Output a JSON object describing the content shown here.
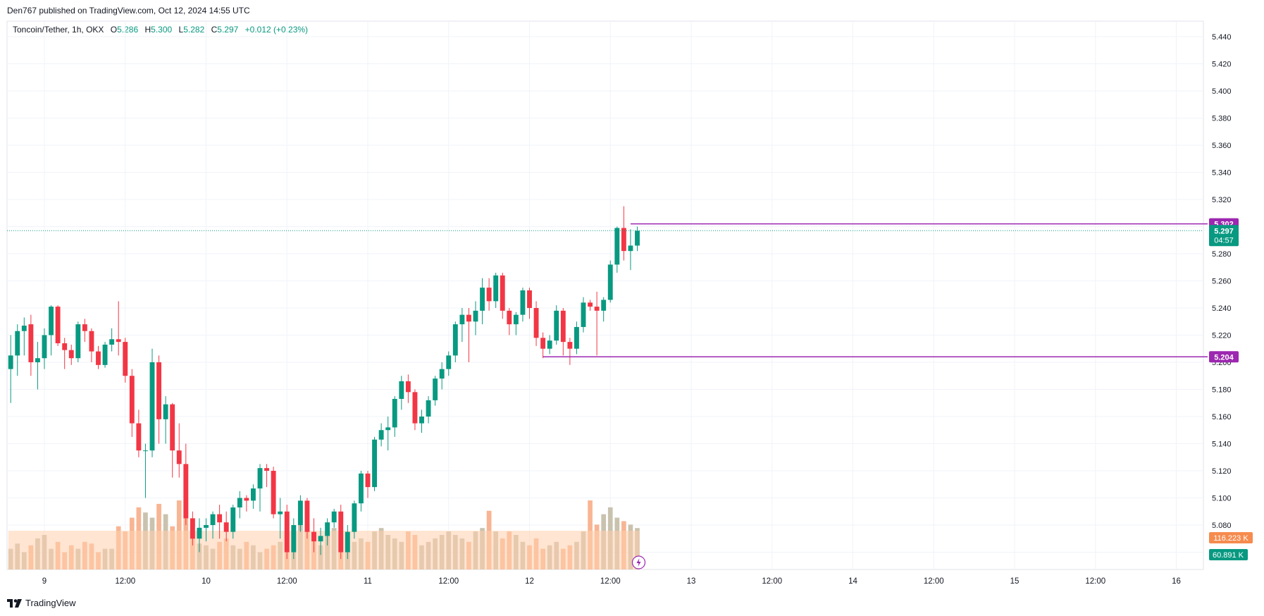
{
  "header": {
    "published": "Den767 published on TradingView.com, Oct 12, 2024 14:55 UTC"
  },
  "legend": {
    "symbol": "Toncoin/Tether, 1h, OKX",
    "open_label": "O",
    "open": "5.286",
    "high_label": "H",
    "high": "5.300",
    "low_label": "L",
    "low": "5.282",
    "close_label": "C",
    "close": "5.297",
    "change": "+0.012 (+0.23%)"
  },
  "footer": {
    "brand": "TradingView",
    "logo_icon": "tradingview-logo-icon"
  },
  "colors": {
    "up": "#089981",
    "down": "#f23645",
    "vol_up": "#bfb7a0",
    "vol_down": "#f7a880",
    "vol_ma": "#ffcfad",
    "level": "#9c27b0",
    "price_label": "#089981",
    "vol_ma_label": "#f68b4e"
  },
  "chart_data": {
    "type": "candlestick",
    "ylim": [
      5.05,
      5.45
    ],
    "y_ticks": [
      "5.440",
      "5.420",
      "5.400",
      "5.380",
      "5.360",
      "5.340",
      "5.320",
      "5.300",
      "5.280",
      "5.260",
      "5.240",
      "5.220",
      "5.200",
      "5.180",
      "5.160",
      "5.140",
      "5.120",
      "5.100",
      "5.080",
      "5.060"
    ],
    "x_ticks": [
      "9",
      "12:00",
      "10",
      "12:00",
      "11",
      "12:00",
      "12",
      "12:00",
      "13",
      "12:00",
      "14",
      "12:00",
      "15",
      "12:00",
      "16"
    ],
    "x_tick_hours": [
      0,
      12,
      24,
      36,
      48,
      60,
      72,
      84,
      96,
      108,
      120,
      132,
      144,
      156,
      168
    ],
    "first_bar_hour": -5,
    "ohlc": [
      [
        5.195,
        5.22,
        5.17,
        5.205
      ],
      [
        5.205,
        5.228,
        5.19,
        5.223
      ],
      [
        5.223,
        5.233,
        5.205,
        5.227
      ],
      [
        5.228,
        5.235,
        5.19,
        5.2
      ],
      [
        5.2,
        5.215,
        5.18,
        5.203
      ],
      [
        5.203,
        5.225,
        5.195,
        5.22
      ],
      [
        5.22,
        5.242,
        5.205,
        5.241
      ],
      [
        5.241,
        5.242,
        5.212,
        5.214
      ],
      [
        5.214,
        5.218,
        5.195,
        5.209
      ],
      [
        5.209,
        5.213,
        5.198,
        5.203
      ],
      [
        5.203,
        5.23,
        5.2,
        5.228
      ],
      [
        5.228,
        5.232,
        5.215,
        5.223
      ],
      [
        5.223,
        5.225,
        5.2,
        5.208
      ],
      [
        5.208,
        5.212,
        5.195,
        5.198
      ],
      [
        5.198,
        5.215,
        5.196,
        5.213
      ],
      [
        5.213,
        5.225,
        5.208,
        5.217
      ],
      [
        5.217,
        5.245,
        5.205,
        5.215
      ],
      [
        5.215,
        5.218,
        5.185,
        5.19
      ],
      [
        5.19,
        5.195,
        5.145,
        5.155
      ],
      [
        5.155,
        5.165,
        5.13,
        5.135
      ],
      [
        5.135,
        5.14,
        5.1,
        5.135
      ],
      [
        5.135,
        5.21,
        5.13,
        5.2
      ],
      [
        5.2,
        5.205,
        5.14,
        5.158
      ],
      [
        5.158,
        5.175,
        5.14,
        5.169
      ],
      [
        5.169,
        5.17,
        5.115,
        5.135
      ],
      [
        5.135,
        5.155,
        5.115,
        5.125
      ],
      [
        5.125,
        5.14,
        5.08,
        5.085
      ],
      [
        5.085,
        5.09,
        5.065,
        5.07
      ],
      [
        5.07,
        5.085,
        5.06,
        5.078
      ],
      [
        5.078,
        5.085,
        5.068,
        5.08
      ],
      [
        5.08,
        5.09,
        5.07,
        5.088
      ],
      [
        5.088,
        5.095,
        5.07,
        5.082
      ],
      [
        5.082,
        5.09,
        5.068,
        5.075
      ],
      [
        5.075,
        5.095,
        5.07,
        5.093
      ],
      [
        5.093,
        5.105,
        5.085,
        5.1
      ],
      [
        5.1,
        5.102,
        5.09,
        5.098
      ],
      [
        5.098,
        5.11,
        5.092,
        5.107
      ],
      [
        5.107,
        5.125,
        5.09,
        5.122
      ],
      [
        5.122,
        5.125,
        5.108,
        5.12
      ],
      [
        5.12,
        5.123,
        5.085,
        5.088
      ],
      [
        5.088,
        5.1,
        5.07,
        5.09
      ],
      [
        5.09,
        5.095,
        5.055,
        5.06
      ],
      [
        5.06,
        5.085,
        5.055,
        5.08
      ],
      [
        5.08,
        5.102,
        5.075,
        5.098
      ],
      [
        5.098,
        5.1,
        5.07,
        5.075
      ],
      [
        5.075,
        5.085,
        5.06,
        5.068
      ],
      [
        5.068,
        5.078,
        5.058,
        5.072
      ],
      [
        5.072,
        5.085,
        5.065,
        5.082
      ],
      [
        5.082,
        5.092,
        5.078,
        5.09
      ],
      [
        5.09,
        5.095,
        5.055,
        5.06
      ],
      [
        5.06,
        5.08,
        5.055,
        5.075
      ],
      [
        5.075,
        5.098,
        5.07,
        5.096
      ],
      [
        5.096,
        5.12,
        5.09,
        5.118
      ],
      [
        5.118,
        5.12,
        5.1,
        5.108
      ],
      [
        5.108,
        5.145,
        5.105,
        5.143
      ],
      [
        5.143,
        5.155,
        5.138,
        5.15
      ],
      [
        5.15,
        5.16,
        5.135,
        5.152
      ],
      [
        5.152,
        5.175,
        5.145,
        5.173
      ],
      [
        5.173,
        5.19,
        5.165,
        5.186
      ],
      [
        5.186,
        5.191,
        5.17,
        5.178
      ],
      [
        5.178,
        5.18,
        5.15,
        5.155
      ],
      [
        5.155,
        5.165,
        5.148,
        5.16
      ],
      [
        5.16,
        5.175,
        5.155,
        5.172
      ],
      [
        5.172,
        5.19,
        5.168,
        5.188
      ],
      [
        5.188,
        5.2,
        5.18,
        5.195
      ],
      [
        5.195,
        5.208,
        5.19,
        5.205
      ],
      [
        5.205,
        5.23,
        5.2,
        5.228
      ],
      [
        5.228,
        5.24,
        5.215,
        5.235
      ],
      [
        5.235,
        5.24,
        5.2,
        5.23
      ],
      [
        5.23,
        5.245,
        5.22,
        5.238
      ],
      [
        5.238,
        5.262,
        5.228,
        5.255
      ],
      [
        5.255,
        5.262,
        5.238,
        5.245
      ],
      [
        5.245,
        5.266,
        5.24,
        5.264
      ],
      [
        5.264,
        5.266,
        5.232,
        5.238
      ],
      [
        5.238,
        5.24,
        5.22,
        5.228
      ],
      [
        5.228,
        5.237,
        5.22,
        5.235
      ],
      [
        5.235,
        5.255,
        5.23,
        5.253
      ],
      [
        5.253,
        5.255,
        5.232,
        5.24
      ],
      [
        5.24,
        5.245,
        5.212,
        5.218
      ],
      [
        5.218,
        5.222,
        5.203,
        5.21
      ],
      [
        5.21,
        5.22,
        5.206,
        5.216
      ],
      [
        5.216,
        5.242,
        5.213,
        5.238
      ],
      [
        5.238,
        5.24,
        5.205,
        5.215
      ],
      [
        5.215,
        5.218,
        5.198,
        5.21
      ],
      [
        5.21,
        5.23,
        5.206,
        5.226
      ],
      [
        5.226,
        5.248,
        5.222,
        5.244
      ],
      [
        5.244,
        5.246,
        5.238,
        5.241
      ],
      [
        5.241,
        5.252,
        5.205,
        5.238
      ],
      [
        5.238,
        5.248,
        5.23,
        5.246
      ],
      [
        5.246,
        5.275,
        5.244,
        5.272
      ],
      [
        5.272,
        5.3,
        5.266,
        5.299
      ],
      [
        5.299,
        5.315,
        5.275,
        5.282
      ],
      [
        5.282,
        5.298,
        5.268,
        5.286
      ],
      [
        5.286,
        5.3,
        5.282,
        5.297
      ]
    ],
    "volume": [
      12,
      15,
      10,
      14,
      18,
      20,
      12,
      16,
      10,
      14,
      12,
      16,
      15,
      10,
      12,
      12,
      25,
      22,
      30,
      36,
      33,
      30,
      38,
      32,
      25,
      40,
      42,
      18,
      15,
      14,
      12,
      16,
      18,
      14,
      12,
      16,
      14,
      10,
      12,
      14,
      16,
      28,
      22,
      30,
      26,
      20,
      14,
      22,
      24,
      20,
      18,
      16,
      18,
      16,
      22,
      24,
      20,
      18,
      16,
      22,
      20,
      14,
      16,
      18,
      20,
      22,
      20,
      18,
      16,
      22,
      24,
      34,
      22,
      18,
      22,
      20,
      16,
      14,
      18,
      12,
      14,
      16,
      12,
      14,
      16,
      22,
      40,
      26,
      32,
      36,
      30,
      28,
      26,
      24
    ],
    "level_lines": [
      {
        "value": 5.302,
        "label": "5.302",
        "start_bar": 92
      },
      {
        "value": 5.204,
        "label": "5.204",
        "start_bar": 79
      }
    ],
    "last_price": {
      "value": 5.297,
      "label": "5.297",
      "countdown": "04:57"
    },
    "volume_labels": {
      "ma": "116.223 K",
      "last": "60.891 K"
    },
    "grid": true
  }
}
